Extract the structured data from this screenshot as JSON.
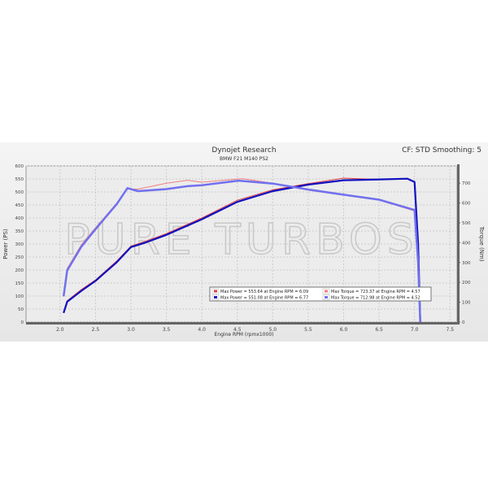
{
  "chart_data": {
    "type": "line",
    "title": "Dynojet Research",
    "subtitle": "BMW F21 M140 PS2",
    "corner_note": "CF: STD Smoothing: 5",
    "xlabel": "Engine RPM (rpmx1000)",
    "ylabel": "Power (PS)",
    "y2label": "Torque (Nm)",
    "xlim": [
      1.52,
      7.6
    ],
    "ylim": [
      0,
      600
    ],
    "y2lim": [
      0,
      787
    ],
    "xticks": [
      "2.0",
      "2.5",
      "3.0",
      "3.5",
      "4.0",
      "4.5",
      "5.0",
      "5.5",
      "6.0",
      "6.5",
      "7.0",
      "7.5"
    ],
    "yticks": [
      "0",
      "50",
      "100",
      "150",
      "200",
      "250",
      "300",
      "350",
      "400",
      "450",
      "500",
      "550",
      "600"
    ],
    "y2ticks": [
      "0",
      "100",
      "200",
      "300",
      "400",
      "500",
      "600",
      "700"
    ],
    "grid": true,
    "watermark": "PURE TURBOS",
    "series": [
      {
        "name": "Max Power = 553.64 at Engine RPM = 6.09",
        "axis": "left",
        "color": "#e04040",
        "x": [
          2.05,
          2.1,
          2.3,
          2.5,
          2.8,
          3.0,
          3.2,
          3.5,
          4.0,
          4.5,
          5.0,
          5.5,
          6.0,
          6.5,
          6.9,
          7.0,
          7.05,
          7.08
        ],
        "y": [
          40,
          82,
          125,
          162,
          235,
          292,
          310,
          340,
          400,
          468,
          508,
          532,
          553,
          548,
          550,
          540,
          300,
          0
        ]
      },
      {
        "name": "Max Power = 551.08 at Engine RPM = 6.77",
        "axis": "left",
        "color": "#1010c0",
        "x": [
          2.05,
          2.1,
          2.3,
          2.5,
          2.8,
          3.0,
          3.2,
          3.5,
          4.0,
          4.5,
          5.0,
          5.5,
          6.0,
          6.5,
          6.9,
          7.0,
          7.05,
          7.08
        ],
        "y": [
          35,
          78,
          120,
          158,
          230,
          288,
          305,
          335,
          395,
          462,
          503,
          528,
          545,
          548,
          551,
          538,
          300,
          0
        ]
      },
      {
        "name": "Max Torque = 723.37 at Engine RPM = 4.57",
        "axis": "right",
        "color": "#f08080",
        "x": [
          2.05,
          2.1,
          2.3,
          2.5,
          2.8,
          2.95,
          3.1,
          3.5,
          3.8,
          4.0,
          4.57,
          5.0,
          5.5,
          6.0,
          6.5,
          7.0,
          7.05,
          7.08
        ],
        "y": [
          140,
          270,
          390,
          475,
          600,
          670,
          670,
          700,
          715,
          705,
          723,
          700,
          665,
          640,
          615,
          560,
          300,
          0
        ]
      },
      {
        "name": "Max Torque = 712.98 at Engine RPM = 4.52",
        "axis": "right",
        "color": "#7070ee",
        "x": [
          2.05,
          2.1,
          2.3,
          2.5,
          2.8,
          2.95,
          3.1,
          3.5,
          3.8,
          4.0,
          4.52,
          5.0,
          5.5,
          6.0,
          6.5,
          7.0,
          7.05,
          7.08
        ],
        "y": [
          130,
          260,
          380,
          468,
          595,
          675,
          660,
          670,
          685,
          690,
          713,
          698,
          668,
          642,
          617,
          565,
          300,
          0
        ]
      }
    ]
  }
}
